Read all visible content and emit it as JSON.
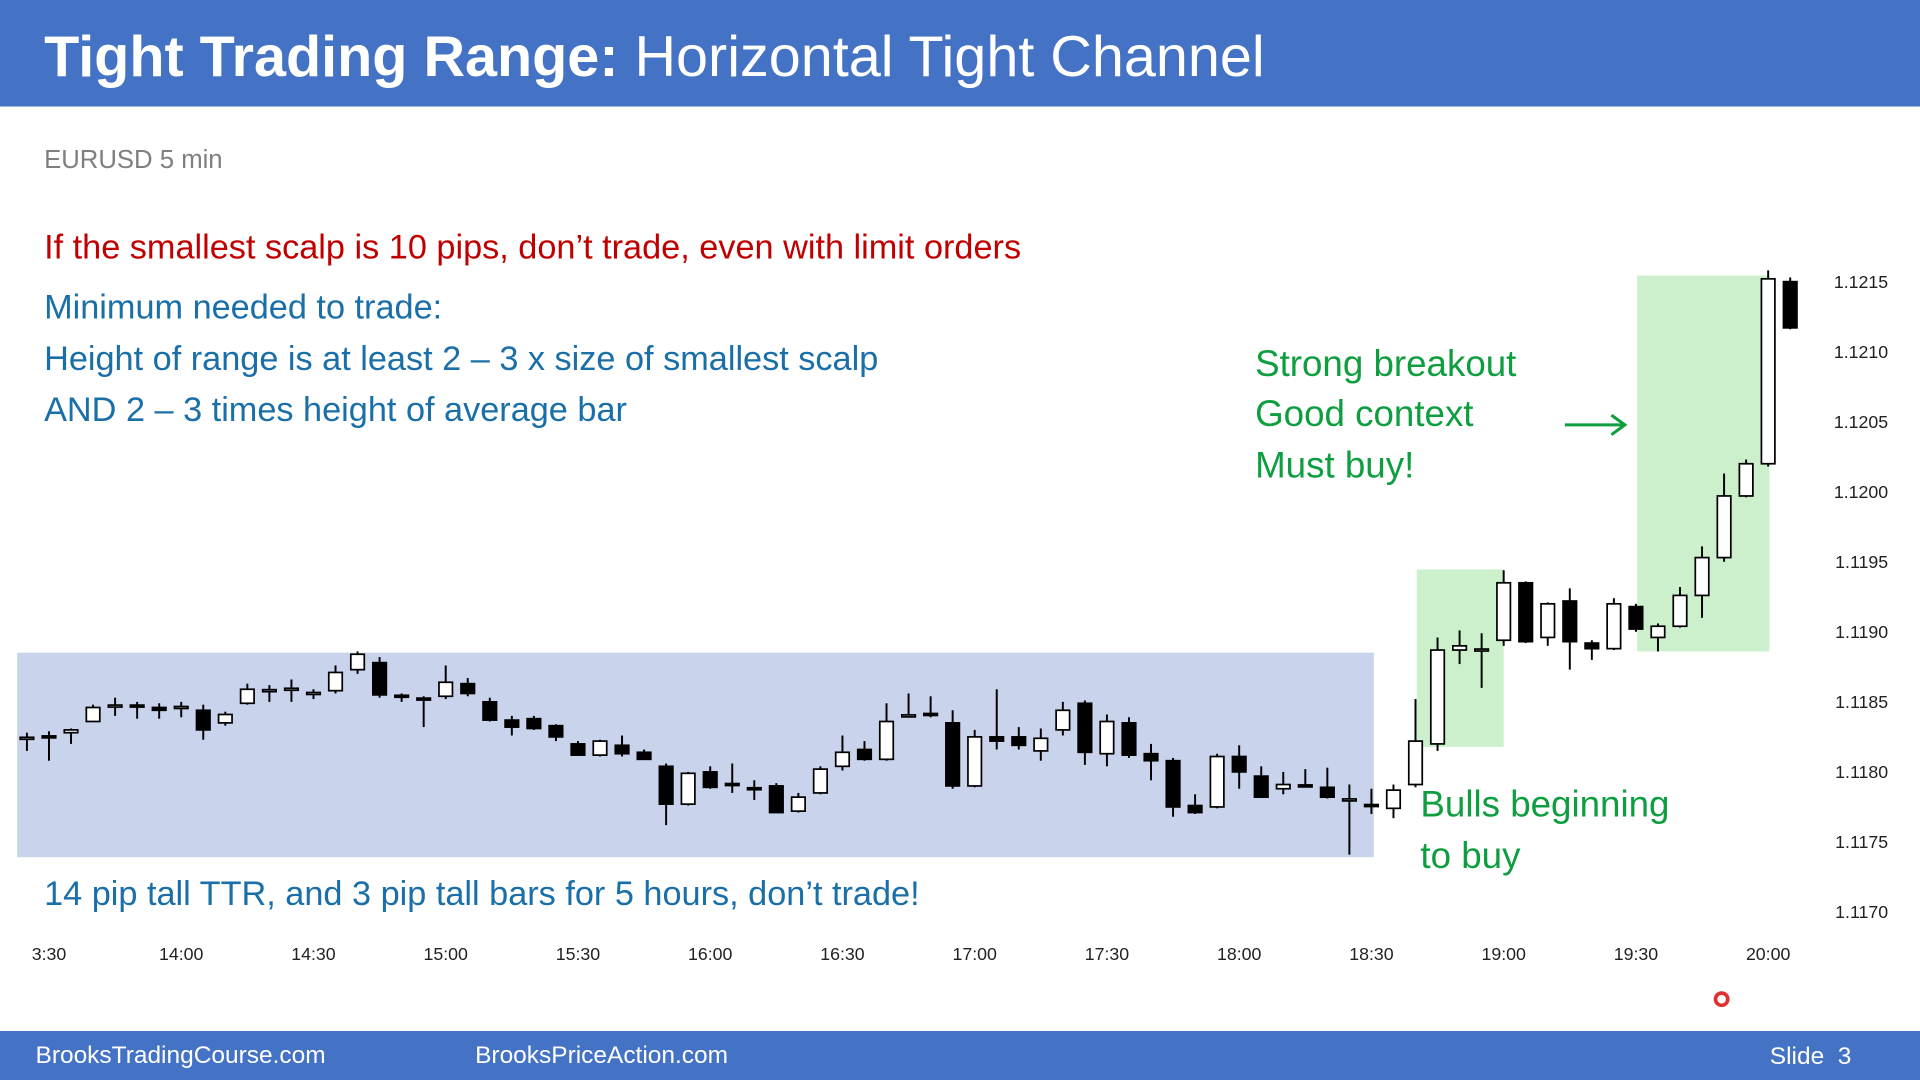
{
  "header": {
    "title_bold": "Tight Trading Range:",
    "title_rest": "Horizontal Tight Channel"
  },
  "subtitle": "EURUSD 5 min",
  "warning": "If the smallest scalp is 10 pips, don’t trade, even with limit orders",
  "notes": [
    "Minimum needed to trade:",
    "Height of range is at least 2 – 3 x size of smallest scalp",
    "AND 2 – 3 times height of average bar"
  ],
  "breakout_note": [
    "Strong breakout",
    "Good context",
    "Must buy!"
  ],
  "bulls_note": [
    "Bulls beginning",
    "to buy"
  ],
  "bottom_note": "14 pip tall TTR, and 3 pip tall bars for 5 hours, don’t trade!",
  "footer": {
    "left": "BrooksTradingCourse.com",
    "middle": "BrooksPriceAction.com",
    "slide": "Slide  3"
  },
  "chart_data": {
    "type": "candlestick",
    "up_color": "#ffffff",
    "down_color": "#000000",
    "outline_color": "#000000",
    "xlim": [
      800,
      1210
    ],
    "ylim": [
      1.1168,
      1.1217
    ],
    "xticks": [
      {
        "value": 810,
        "label": "3:30"
      },
      {
        "value": 840,
        "label": "14:00"
      },
      {
        "value": 870,
        "label": "14:30"
      },
      {
        "value": 900,
        "label": "15:00"
      },
      {
        "value": 930,
        "label": "15:30"
      },
      {
        "value": 960,
        "label": "16:00"
      },
      {
        "value": 990,
        "label": "16:30"
      },
      {
        "value": 1020,
        "label": "17:00"
      },
      {
        "value": 1050,
        "label": "17:30"
      },
      {
        "value": 1080,
        "label": "18:00"
      },
      {
        "value": 1110,
        "label": "18:30"
      },
      {
        "value": 1140,
        "label": "19:00"
      },
      {
        "value": 1170,
        "label": "19:30"
      },
      {
        "value": 1200,
        "label": "20:00"
      }
    ],
    "yticks": [
      1.1215,
      {
        "value": 1.121,
        "label": "1.1210"
      },
      1.1205,
      {
        "value": 1.12,
        "label": "1.1200"
      },
      1.1195,
      {
        "value": 1.119,
        "label": "1.1190"
      },
      1.1185,
      {
        "value": 1.118,
        "label": "1.1180"
      },
      1.1175,
      {
        "value": 1.117,
        "label": "1.1170"
      }
    ],
    "x": [
      805,
      810,
      815,
      820,
      825,
      830,
      835,
      840,
      845,
      850,
      855,
      860,
      865,
      870,
      875,
      880,
      885,
      890,
      895,
      900,
      905,
      910,
      915,
      920,
      925,
      930,
      935,
      940,
      945,
      950,
      955,
      960,
      965,
      970,
      975,
      980,
      985,
      990,
      995,
      1000,
      1005,
      1010,
      1015,
      1020,
      1025,
      1030,
      1035,
      1040,
      1045,
      1050,
      1055,
      1060,
      1065,
      1070,
      1075,
      1080,
      1085,
      1090,
      1095,
      1100,
      1105,
      1110,
      1115,
      1120,
      1125,
      1130,
      1135,
      1140,
      1145,
      1150,
      1155,
      1160,
      1165,
      1170,
      1175,
      1180,
      1185,
      1190,
      1195,
      1200,
      1205
    ],
    "open": [
      1.11824,
      1.11825,
      1.11828,
      1.11836,
      1.11846,
      1.11847,
      1.11846,
      1.11845,
      1.11844,
      1.11835,
      1.11849,
      1.11857,
      1.11858,
      1.11855,
      1.11858,
      1.11873,
      1.11878,
      1.11854,
      1.11852,
      1.11854,
      1.11863,
      1.1185,
      1.11837,
      1.11838,
      1.11833,
      1.1182,
      1.11812,
      1.11819,
      1.11814,
      1.11804,
      1.11777,
      1.118,
      1.11791,
      1.11788,
      1.1179,
      1.11772,
      1.11785,
      1.11804,
      1.11816,
      1.11809,
      1.1184,
      1.11841,
      1.11835,
      1.1179,
      1.11825,
      1.11825,
      1.11815,
      1.1183,
      1.11849,
      1.11813,
      1.11835,
      1.11813,
      1.11808,
      1.11776,
      1.11775,
      1.11811,
      1.11797,
      1.11788,
      1.1179,
      1.11789,
      1.1178,
      1.11776,
      1.11774,
      1.11791,
      1.1182,
      1.11887,
      1.11886,
      1.11894,
      1.11935,
      1.11896,
      1.11922,
      1.11892,
      1.11888,
      1.11918,
      1.11896,
      1.11904,
      1.11926,
      1.11953,
      1.11997,
      1.1202,
      1.1215
    ],
    "high": [
      1.11828,
      1.11829,
      1.11831,
      1.11848,
      1.11853,
      1.1185,
      1.11849,
      1.1185,
      1.11848,
      1.11843,
      1.11863,
      1.11862,
      1.11866,
      1.11859,
      1.11876,
      1.11886,
      1.11882,
      1.11856,
      1.11854,
      1.11876,
      1.11867,
      1.11853,
      1.1184,
      1.1184,
      1.11834,
      1.11822,
      1.11823,
      1.11826,
      1.11816,
      1.11806,
      1.118,
      1.11804,
      1.11806,
      1.11794,
      1.11792,
      1.11785,
      1.11804,
      1.11826,
      1.11822,
      1.11849,
      1.11856,
      1.11854,
      1.11844,
      1.1183,
      1.11859,
      1.11832,
      1.11831,
      1.1185,
      1.11851,
      1.11841,
      1.11839,
      1.1182,
      1.1181,
      1.11784,
      1.11813,
      1.11819,
      1.11804,
      1.118,
      1.11802,
      1.11803,
      1.11791,
      1.11788,
      1.11791,
      1.11852,
      1.11896,
      1.11901,
      1.11899,
      1.11944,
      1.11936,
      1.11921,
      1.11931,
      1.11894,
      1.11924,
      1.1192,
      1.11906,
      1.11932,
      1.11961,
      1.12013,
      1.12023,
      1.12158,
      1.12153
    ],
    "low": [
      1.11815,
      1.11808,
      1.1182,
      1.11836,
      1.1184,
      1.11838,
      1.11838,
      1.11839,
      1.11823,
      1.11833,
      1.11848,
      1.1185,
      1.1185,
      1.11852,
      1.11856,
      1.1187,
      1.11853,
      1.1185,
      1.11832,
      1.11852,
      1.11854,
      1.11836,
      1.11826,
      1.1183,
      1.11822,
      1.11812,
      1.11811,
      1.11811,
      1.11809,
      1.11762,
      1.11776,
      1.11788,
      1.11785,
      1.1178,
      1.11771,
      1.11771,
      1.11784,
      1.11801,
      1.11808,
      1.11808,
      1.11839,
      1.11839,
      1.11788,
      1.11789,
      1.11816,
      1.11816,
      1.11808,
      1.11826,
      1.11805,
      1.11804,
      1.1181,
      1.11794,
      1.11768,
      1.1177,
      1.11774,
      1.11788,
      1.11782,
      1.11784,
      1.11789,
      1.11781,
      1.11741,
      1.1177,
      1.11767,
      1.11789,
      1.11815,
      1.11877,
      1.1186,
      1.1189,
      1.11892,
      1.1189,
      1.11873,
      1.1188,
      1.11887,
      1.119,
      1.11886,
      1.11903,
      1.1191,
      1.1195,
      1.11996,
      1.12018,
      1.12116
    ],
    "close": [
      1.11824,
      1.11824,
      1.1183,
      1.11846,
      1.11847,
      1.11846,
      1.11844,
      1.11846,
      1.1183,
      1.11841,
      1.11859,
      1.11858,
      1.11859,
      1.11856,
      1.11871,
      1.11884,
      1.11855,
      1.11853,
      1.11851,
      1.11864,
      1.11856,
      1.11837,
      1.11832,
      1.11831,
      1.11825,
      1.11812,
      1.11822,
      1.11813,
      1.11809,
      1.11777,
      1.11799,
      1.11789,
      1.1179,
      1.11787,
      1.11771,
      1.11782,
      1.11802,
      1.11814,
      1.11809,
      1.11836,
      1.1184,
      1.1184,
      1.1179,
      1.11825,
      1.11822,
      1.11819,
      1.11824,
      1.11844,
      1.11814,
      1.11836,
      1.11812,
      1.11808,
      1.11775,
      1.11771,
      1.11811,
      1.118,
      1.11782,
      1.11791,
      1.11789,
      1.11782,
      1.1178,
      1.11775,
      1.11787,
      1.11822,
      1.11887,
      1.1189,
      1.11887,
      1.11935,
      1.11893,
      1.1192,
      1.11893,
      1.11888,
      1.1192,
      1.11902,
      1.11904,
      1.11926,
      1.11953,
      1.11997,
      1.1202,
      1.12152,
      1.12117
    ]
  }
}
